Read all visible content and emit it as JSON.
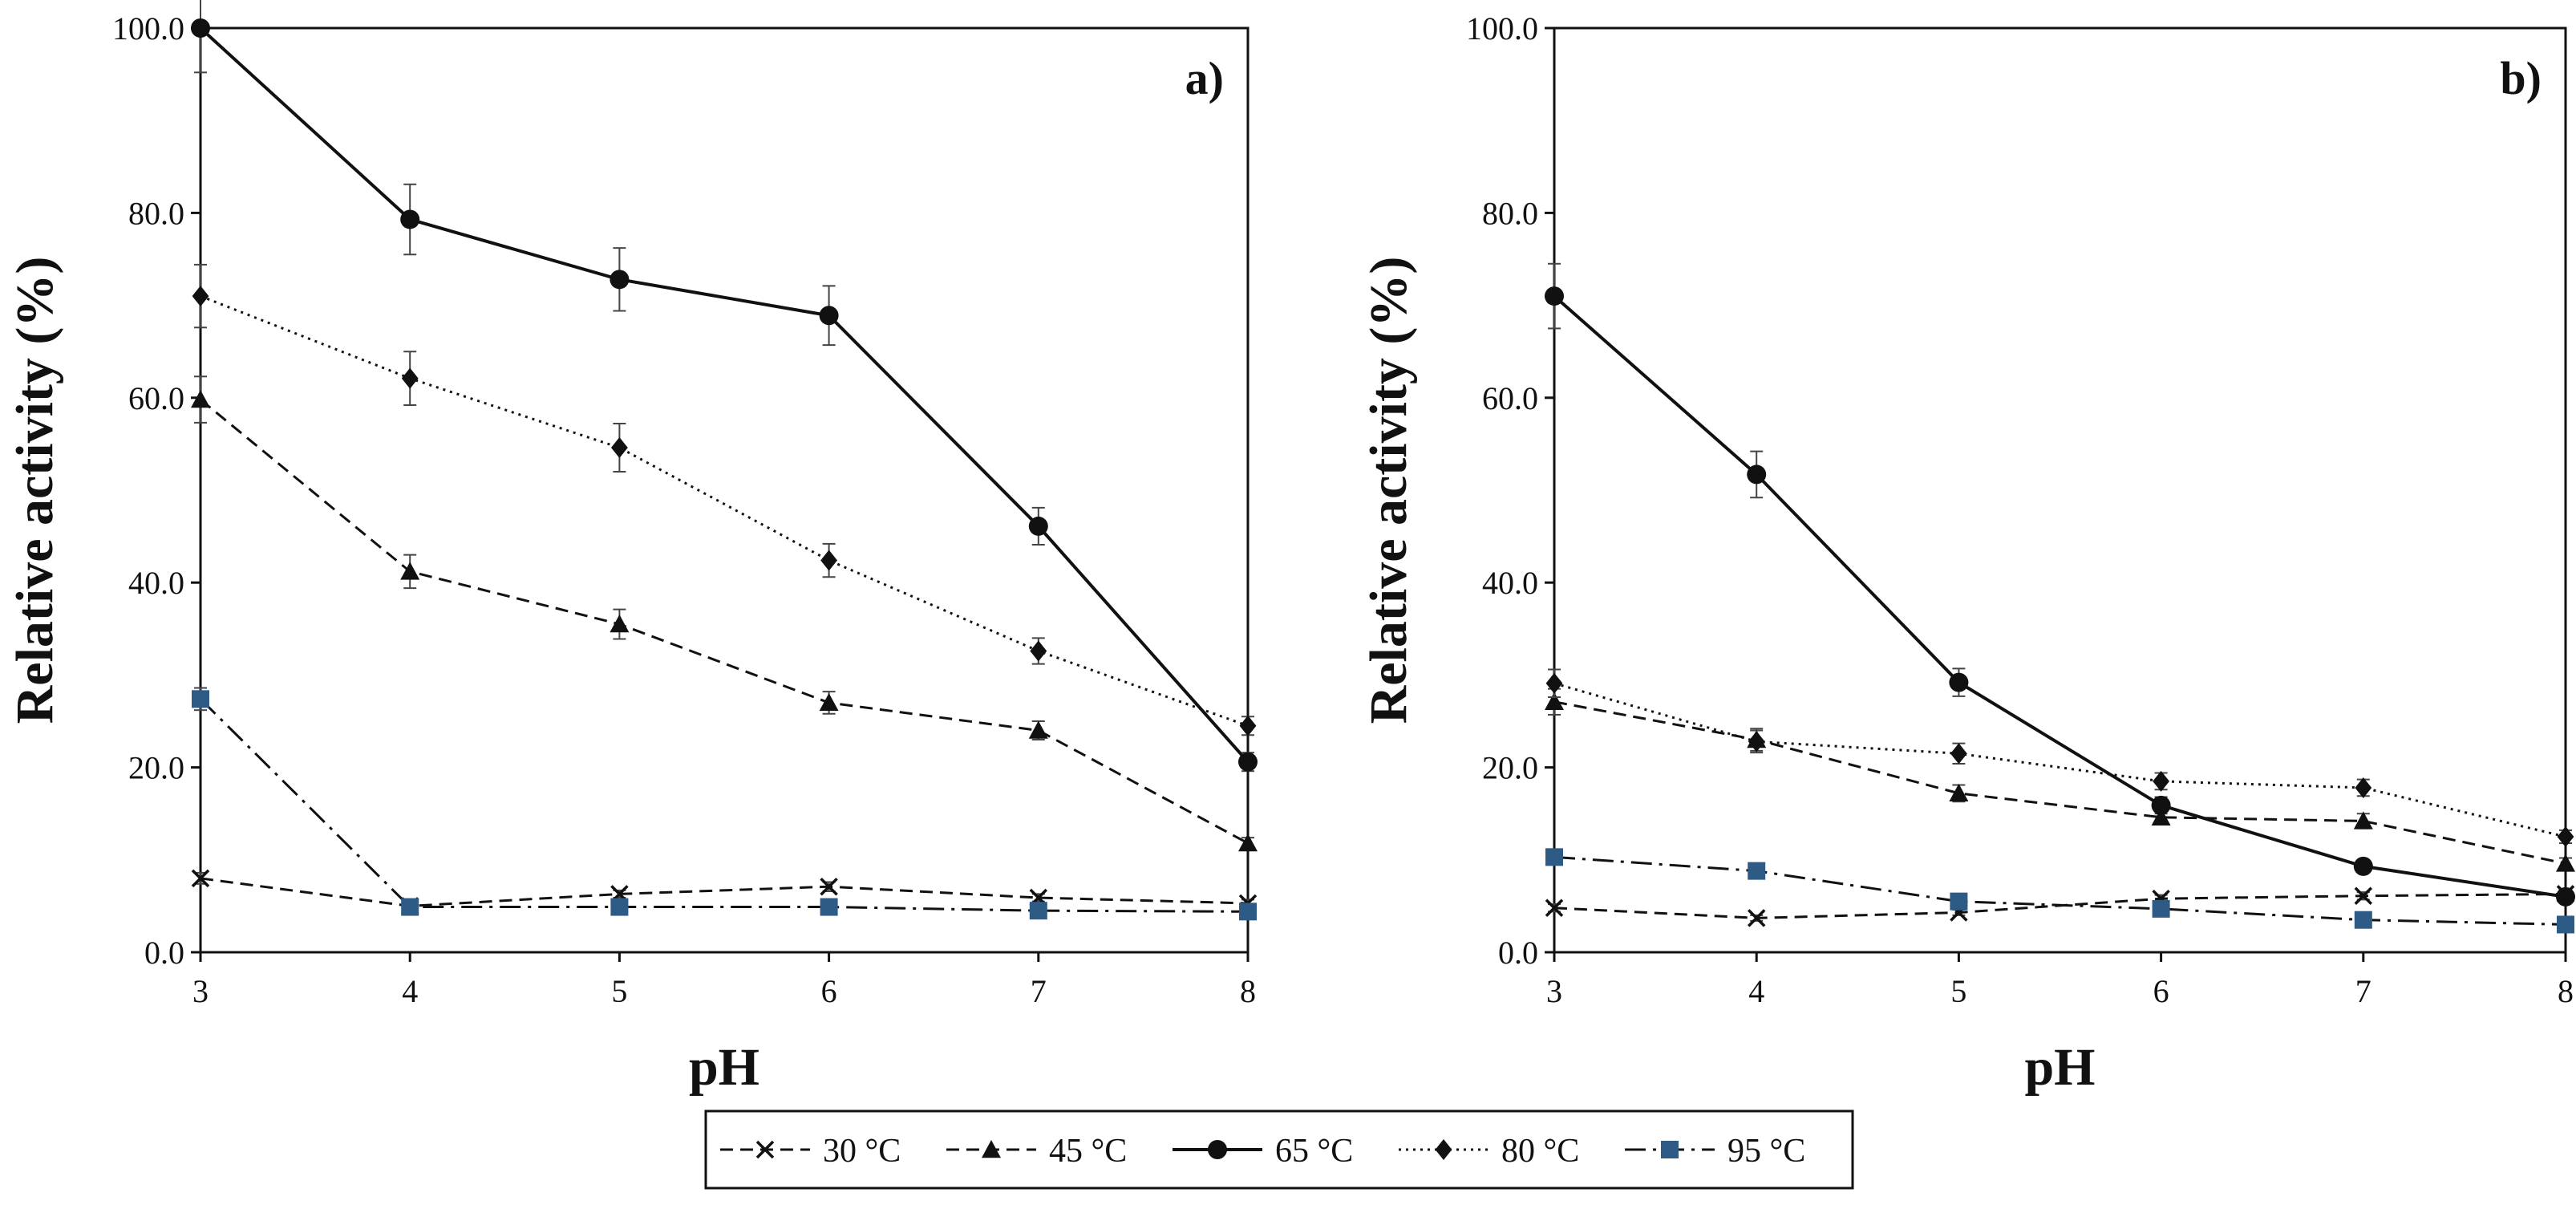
{
  "chart_data": [
    {
      "panel": "a)",
      "type": "line",
      "xlabel": "pH",
      "ylabel": "Relative activity (%)",
      "x": [
        3,
        4,
        5,
        6,
        7,
        8
      ],
      "xlim": [
        3,
        8
      ],
      "ylim": [
        0,
        100
      ],
      "yticks": [
        "0.0",
        "20.0",
        "40.0",
        "60.0",
        "80.0",
        "100.0"
      ],
      "series": [
        {
          "name": "30 °C",
          "marker": "x",
          "dash": "dashed",
          "values": [
            8.0,
            5.0,
            6.3,
            7.1,
            5.9,
            5.3
          ],
          "errors": [
            0.6,
            0.4,
            0.4,
            0.5,
            0.4,
            0.4
          ]
        },
        {
          "name": "45 °C",
          "marker": "triangle",
          "dash": "dashed",
          "values": [
            59.8,
            41.2,
            35.5,
            27.0,
            24.0,
            11.8
          ],
          "errors": [
            2.5,
            1.8,
            1.6,
            1.2,
            1.0,
            0.6
          ]
        },
        {
          "name": "65 °C",
          "marker": "circle",
          "dash": "solid",
          "values": [
            100.0,
            79.3,
            72.8,
            68.9,
            46.1,
            20.6
          ],
          "errors": [
            4.8,
            3.8,
            3.4,
            3.2,
            2.0,
            1.0
          ]
        },
        {
          "name": "80 °C",
          "marker": "diamond",
          "dash": "dotted",
          "values": [
            71.0,
            62.1,
            54.6,
            42.4,
            32.6,
            24.5
          ],
          "errors": [
            3.4,
            2.9,
            2.6,
            1.8,
            1.4,
            1.0
          ]
        },
        {
          "name": "95 °C",
          "marker": "square",
          "dash": "dashdot",
          "values": [
            27.4,
            4.9,
            4.9,
            4.9,
            4.5,
            4.4
          ],
          "errors": [
            1.2,
            0.4,
            0.4,
            0.4,
            0.3,
            0.3
          ]
        }
      ]
    },
    {
      "panel": "b)",
      "type": "line",
      "xlabel": "pH",
      "ylabel": "Relative activity (%)",
      "x": [
        3,
        4,
        5,
        6,
        7,
        8
      ],
      "xlim": [
        3,
        8
      ],
      "ylim": [
        0,
        100
      ],
      "yticks": [
        "0.0",
        "20.0",
        "40.0",
        "60.0",
        "80.0",
        "100.0"
      ],
      "series": [
        {
          "name": "30 °C",
          "marker": "x",
          "dash": "dashed",
          "values": [
            4.8,
            3.7,
            4.3,
            5.8,
            6.1,
            6.3
          ],
          "errors": [
            0.4,
            0.3,
            0.3,
            0.4,
            0.4,
            0.4
          ]
        },
        {
          "name": "45 °C",
          "marker": "triangle",
          "dash": "dashed",
          "values": [
            27.1,
            23.0,
            17.2,
            14.6,
            14.2,
            9.6
          ],
          "errors": [
            1.4,
            1.2,
            0.9,
            0.8,
            0.8,
            0.6
          ]
        },
        {
          "name": "65 °C",
          "marker": "circle",
          "dash": "solid",
          "values": [
            71.0,
            51.7,
            29.2,
            15.9,
            9.3,
            6.0
          ],
          "errors": [
            3.5,
            2.5,
            1.5,
            0.9,
            0.6,
            0.5
          ]
        },
        {
          "name": "80 °C",
          "marker": "diamond",
          "dash": "dotted",
          "values": [
            29.1,
            22.8,
            21.5,
            18.5,
            17.8,
            12.5
          ],
          "errors": [
            1.5,
            1.2,
            1.1,
            0.9,
            0.9,
            0.7
          ]
        },
        {
          "name": "95 °C",
          "marker": "square",
          "dash": "dashdot",
          "values": [
            10.3,
            8.8,
            5.5,
            4.7,
            3.5,
            3.0
          ],
          "errors": [
            0.6,
            0.5,
            0.4,
            0.4,
            0.3,
            0.3
          ]
        }
      ]
    }
  ],
  "legend": {
    "entries": [
      "30 °C",
      "45 °C",
      "65 °C",
      "80 °C",
      "95 °C"
    ]
  },
  "colors": {
    "ink": "#111111",
    "square_marker": "#2e5a86"
  }
}
